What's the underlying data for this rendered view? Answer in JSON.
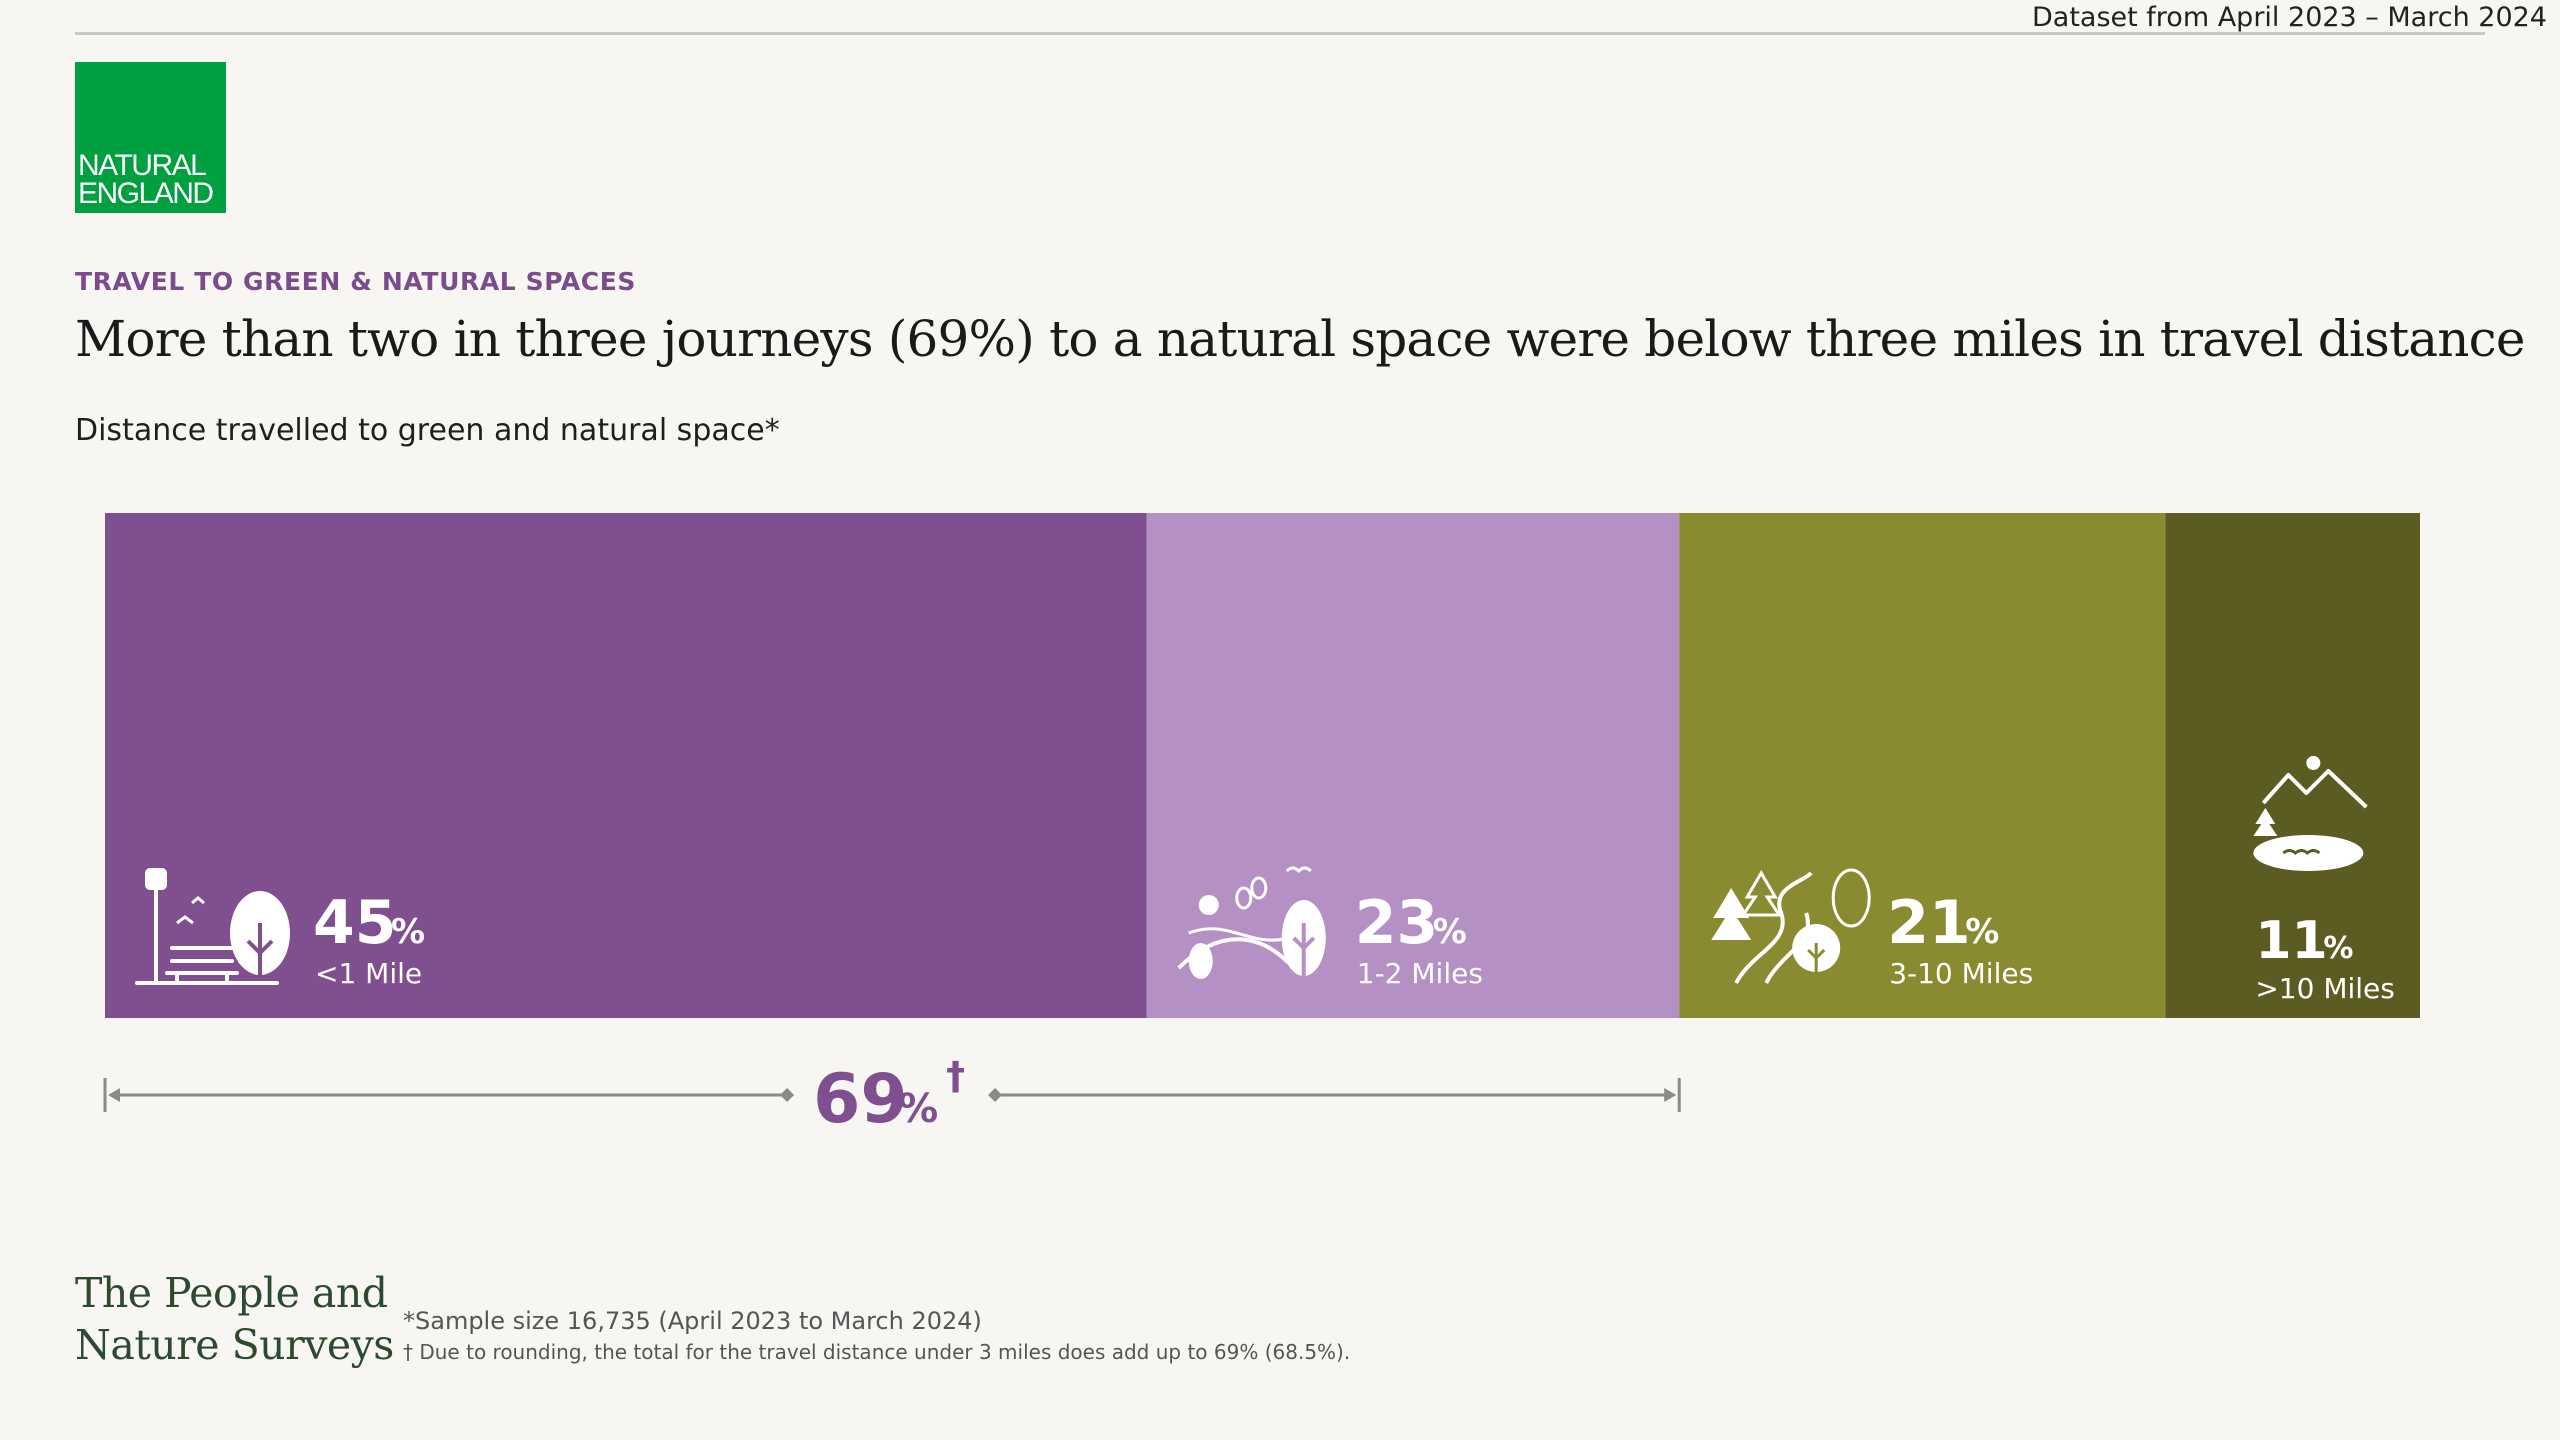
{
  "header": {
    "dataset_label": "Dataset from April 2023 – March 2024"
  },
  "logo": {
    "line1": "NATURAL",
    "line2": "ENGLAND",
    "color": "#00a040"
  },
  "kicker": "TRAVEL TO GREEN & NATURAL SPACES",
  "headline": "More than two in three journeys (69%) to a natural space were below three miles in travel distance",
  "subtitle": "Distance travelled to green and natural space*",
  "chart_data": {
    "type": "bar",
    "orientation": "stacked-horizontal",
    "categories": [
      "<1 Mile",
      "1-2 Miles",
      "3-10 Miles",
      ">10 Miles"
    ],
    "values": [
      45,
      23,
      21,
      11
    ],
    "unit": "%",
    "colors": [
      "#7f4f90",
      "#b590c4",
      "#8a8a30",
      "#5c5c22"
    ],
    "icons": [
      "park-bench-tree-icon",
      "hills-trees-icon",
      "forest-path-icon",
      "mountain-lake-icon"
    ],
    "bracket": {
      "value": "69",
      "unit": "%",
      "marker": "†",
      "span_categories": [
        "<1 Mile",
        "1-2 Miles"
      ]
    }
  },
  "footer": {
    "survey_title_line1": "The People and",
    "survey_title_line2": "Nature Surveys",
    "note_sample": "*Sample size 16,735 (April 2023 to March 2024)",
    "note_rounding": "† Due to rounding, the total for the travel distance under 3 miles does add up to 69% (68.5%)."
  }
}
